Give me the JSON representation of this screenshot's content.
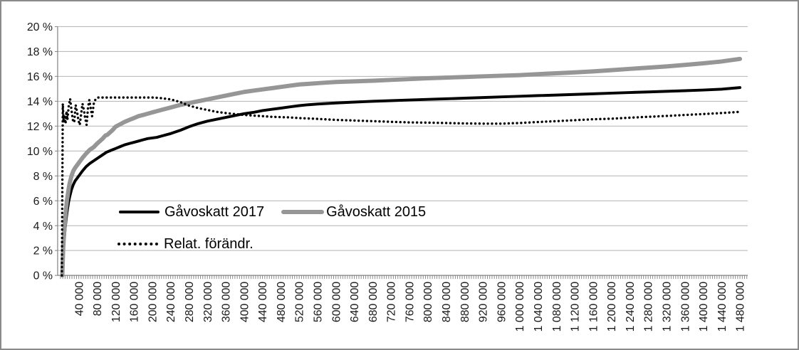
{
  "window": {
    "background_color": "#ffffff",
    "border_color": "#8a8a8a"
  },
  "chart_data": {
    "type": "line",
    "grid": true,
    "gridline_color": "#b3b3b3",
    "axis_color": "#808080",
    "text_color": "#1a1a1a",
    "y_axis": {
      "min": 0,
      "max": 20,
      "step": 2,
      "labels": [
        "0 %",
        "2 %",
        "4 %",
        "6 %",
        "8 %",
        "10 %",
        "12 %",
        "14 %",
        "16 %",
        "18 %",
        "20 %"
      ]
    },
    "x_axis": {
      "min": 0,
      "max": 1497000,
      "minor_tick_interval": 5000,
      "label_interval": 40000,
      "labels": [
        "40 000",
        "80 000",
        "120 000",
        "160 000",
        "200 000",
        "240 000",
        "280 000",
        "320 000",
        "360 000",
        "400 000",
        "440 000",
        "480 000",
        "520 000",
        "560 000",
        "600 000",
        "640 000",
        "680 000",
        "720 000",
        "760 000",
        "800 000",
        "840 000",
        "880 000",
        "920 000",
        "960 000",
        "1 000 000",
        "1 040 000",
        "1 080 000",
        "1 120 000",
        "1 160 000",
        "1 200 000",
        "1 240 000",
        "1 280 000",
        "1 320 000",
        "1 360 000",
        "1 400 000",
        "1 440 000",
        "1 480 000"
      ]
    },
    "legend": {
      "position": "inside-lower-left",
      "rows": 2
    },
    "series": [
      {
        "name": "Gåvoskatt 2017",
        "color": "#000000",
        "style": "solid",
        "stroke_width": 4,
        "points": [
          [
            4000,
            0
          ],
          [
            6000,
            1.8
          ],
          [
            8000,
            2.8
          ],
          [
            10000,
            3.7
          ],
          [
            12000,
            4.4
          ],
          [
            14000,
            5.0
          ],
          [
            16000,
            5.5
          ],
          [
            18000,
            5.95
          ],
          [
            20000,
            6.3
          ],
          [
            24000,
            6.9
          ],
          [
            28000,
            7.3
          ],
          [
            32000,
            7.6
          ],
          [
            36000,
            7.8
          ],
          [
            40000,
            8.0
          ],
          [
            48000,
            8.4
          ],
          [
            56000,
            8.75
          ],
          [
            64000,
            9.0
          ],
          [
            72000,
            9.2
          ],
          [
            80000,
            9.4
          ],
          [
            90000,
            9.65
          ],
          [
            100000,
            9.9
          ],
          [
            110000,
            10.05
          ],
          [
            120000,
            10.2
          ],
          [
            130000,
            10.35
          ],
          [
            140000,
            10.5
          ],
          [
            150000,
            10.6
          ],
          [
            160000,
            10.7
          ],
          [
            170000,
            10.8
          ],
          [
            180000,
            10.9
          ],
          [
            190000,
            11.0
          ],
          [
            200000,
            11.05
          ],
          [
            210000,
            11.1
          ],
          [
            220000,
            11.2
          ],
          [
            240000,
            11.4
          ],
          [
            260000,
            11.65
          ],
          [
            280000,
            11.95
          ],
          [
            300000,
            12.2
          ],
          [
            320000,
            12.4
          ],
          [
            340000,
            12.55
          ],
          [
            360000,
            12.7
          ],
          [
            380000,
            12.85
          ],
          [
            400000,
            13.0
          ],
          [
            420000,
            13.1
          ],
          [
            440000,
            13.25
          ],
          [
            460000,
            13.35
          ],
          [
            480000,
            13.45
          ],
          [
            500000,
            13.55
          ],
          [
            520000,
            13.65
          ],
          [
            540000,
            13.72
          ],
          [
            560000,
            13.78
          ],
          [
            580000,
            13.82
          ],
          [
            600000,
            13.86
          ],
          [
            640000,
            13.93
          ],
          [
            680000,
            14.0
          ],
          [
            720000,
            14.05
          ],
          [
            760000,
            14.1
          ],
          [
            800000,
            14.15
          ],
          [
            840000,
            14.2
          ],
          [
            880000,
            14.25
          ],
          [
            920000,
            14.3
          ],
          [
            960000,
            14.35
          ],
          [
            1000000,
            14.4
          ],
          [
            1040000,
            14.45
          ],
          [
            1080000,
            14.5
          ],
          [
            1120000,
            14.55
          ],
          [
            1160000,
            14.6
          ],
          [
            1200000,
            14.65
          ],
          [
            1240000,
            14.7
          ],
          [
            1280000,
            14.75
          ],
          [
            1320000,
            14.8
          ],
          [
            1360000,
            14.85
          ],
          [
            1400000,
            14.9
          ],
          [
            1440000,
            14.97
          ],
          [
            1480000,
            15.1
          ]
        ]
      },
      {
        "name": "Gåvoskatt 2015",
        "color": "#969696",
        "style": "solid",
        "stroke_width": 6,
        "points": [
          [
            4000,
            0
          ],
          [
            6000,
            2.2
          ],
          [
            8000,
            3.4
          ],
          [
            10000,
            4.5
          ],
          [
            12000,
            5.3
          ],
          [
            14000,
            6.0
          ],
          [
            16000,
            6.5
          ],
          [
            18000,
            7.0
          ],
          [
            20000,
            7.4
          ],
          [
            24000,
            8.0
          ],
          [
            28000,
            8.4
          ],
          [
            32000,
            8.65
          ],
          [
            36000,
            8.85
          ],
          [
            40000,
            9.05
          ],
          [
            48000,
            9.45
          ],
          [
            56000,
            9.8
          ],
          [
            64000,
            10.1
          ],
          [
            72000,
            10.3
          ],
          [
            80000,
            10.6
          ],
          [
            86000,
            10.8
          ],
          [
            92000,
            11.0
          ],
          [
            98000,
            11.25
          ],
          [
            102000,
            11.3
          ],
          [
            108000,
            11.5
          ],
          [
            114000,
            11.7
          ],
          [
            120000,
            11.95
          ],
          [
            130000,
            12.15
          ],
          [
            140000,
            12.35
          ],
          [
            150000,
            12.5
          ],
          [
            160000,
            12.65
          ],
          [
            170000,
            12.8
          ],
          [
            180000,
            12.9
          ],
          [
            190000,
            13.0
          ],
          [
            200000,
            13.1
          ],
          [
            220000,
            13.3
          ],
          [
            240000,
            13.5
          ],
          [
            260000,
            13.7
          ],
          [
            280000,
            13.85
          ],
          [
            300000,
            14.0
          ],
          [
            320000,
            14.15
          ],
          [
            340000,
            14.3
          ],
          [
            360000,
            14.45
          ],
          [
            380000,
            14.6
          ],
          [
            400000,
            14.75
          ],
          [
            420000,
            14.85
          ],
          [
            440000,
            14.95
          ],
          [
            460000,
            15.05
          ],
          [
            480000,
            15.15
          ],
          [
            500000,
            15.25
          ],
          [
            520000,
            15.35
          ],
          [
            540000,
            15.4
          ],
          [
            560000,
            15.45
          ],
          [
            580000,
            15.5
          ],
          [
            600000,
            15.55
          ],
          [
            640000,
            15.6
          ],
          [
            680000,
            15.65
          ],
          [
            720000,
            15.72
          ],
          [
            760000,
            15.78
          ],
          [
            800000,
            15.85
          ],
          [
            840000,
            15.9
          ],
          [
            880000,
            15.95
          ],
          [
            920000,
            16.0
          ],
          [
            960000,
            16.05
          ],
          [
            1000000,
            16.1
          ],
          [
            1040000,
            16.18
          ],
          [
            1080000,
            16.25
          ],
          [
            1120000,
            16.32
          ],
          [
            1160000,
            16.4
          ],
          [
            1200000,
            16.5
          ],
          [
            1240000,
            16.6
          ],
          [
            1280000,
            16.7
          ],
          [
            1320000,
            16.8
          ],
          [
            1360000,
            16.92
          ],
          [
            1400000,
            17.05
          ],
          [
            1440000,
            17.2
          ],
          [
            1480000,
            17.4
          ]
        ]
      },
      {
        "name": "Relat. förändr.",
        "color": "#000000",
        "style": "dotted",
        "stroke_width": 3.4,
        "points": [
          [
            3000,
            0
          ],
          [
            5000,
            13.8
          ],
          [
            7000,
            12.3
          ],
          [
            9000,
            12.9
          ],
          [
            11000,
            12.2
          ],
          [
            13000,
            13.2
          ],
          [
            15000,
            12.5
          ],
          [
            18000,
            13.6
          ],
          [
            21000,
            14.2
          ],
          [
            24000,
            13.3
          ],
          [
            27000,
            12.5
          ],
          [
            30000,
            12.3
          ],
          [
            33000,
            13.7
          ],
          [
            36000,
            13.2
          ],
          [
            39000,
            12.5
          ],
          [
            42000,
            12.1
          ],
          [
            45000,
            13.0
          ],
          [
            48000,
            13.8
          ],
          [
            51000,
            13.3
          ],
          [
            54000,
            12.6
          ],
          [
            57000,
            12.1
          ],
          [
            60000,
            13.5
          ],
          [
            63000,
            14.1
          ],
          [
            66000,
            13.4
          ],
          [
            69000,
            12.8
          ],
          [
            73000,
            13.9
          ],
          [
            77000,
            14.2
          ],
          [
            82000,
            14.3
          ],
          [
            100000,
            14.3
          ],
          [
            140000,
            14.3
          ],
          [
            180000,
            14.3
          ],
          [
            200000,
            14.3
          ],
          [
            210000,
            14.28
          ],
          [
            220000,
            14.25
          ],
          [
            230000,
            14.2
          ],
          [
            240000,
            14.15
          ],
          [
            250000,
            14.05
          ],
          [
            260000,
            13.95
          ],
          [
            270000,
            13.8
          ],
          [
            280000,
            13.65
          ],
          [
            290000,
            13.55
          ],
          [
            300000,
            13.45
          ],
          [
            320000,
            13.3
          ],
          [
            340000,
            13.15
          ],
          [
            360000,
            13.05
          ],
          [
            380000,
            12.97
          ],
          [
            400000,
            12.9
          ],
          [
            420000,
            12.85
          ],
          [
            440000,
            12.8
          ],
          [
            460000,
            12.75
          ],
          [
            480000,
            12.72
          ],
          [
            500000,
            12.7
          ],
          [
            520000,
            12.65
          ],
          [
            560000,
            12.58
          ],
          [
            600000,
            12.5
          ],
          [
            640000,
            12.45
          ],
          [
            680000,
            12.4
          ],
          [
            720000,
            12.35
          ],
          [
            760000,
            12.3
          ],
          [
            800000,
            12.28
          ],
          [
            840000,
            12.25
          ],
          [
            880000,
            12.22
          ],
          [
            920000,
            12.2
          ],
          [
            960000,
            12.2
          ],
          [
            1000000,
            12.25
          ],
          [
            1040000,
            12.33
          ],
          [
            1080000,
            12.4
          ],
          [
            1120000,
            12.48
          ],
          [
            1160000,
            12.55
          ],
          [
            1200000,
            12.6
          ],
          [
            1240000,
            12.68
          ],
          [
            1280000,
            12.75
          ],
          [
            1320000,
            12.82
          ],
          [
            1360000,
            12.9
          ],
          [
            1400000,
            12.97
          ],
          [
            1440000,
            13.05
          ],
          [
            1480000,
            13.15
          ]
        ]
      }
    ]
  }
}
